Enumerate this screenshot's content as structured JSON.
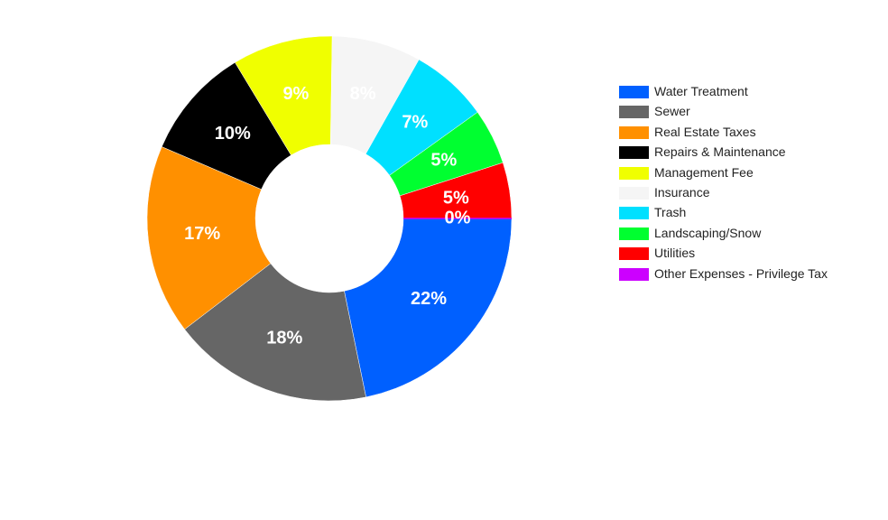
{
  "chart_data": {
    "type": "pie",
    "categories": [
      "Water Treatment",
      "Sewer",
      "Real Estate Taxes",
      "Repairs & Maintenance",
      "Management Fee",
      "Insurance",
      "Trash",
      "Landscaping/Snow",
      "Utilities",
      "Other Expenses - Privilege Tax"
    ],
    "values": [
      22,
      18,
      17,
      10,
      9,
      8,
      7,
      5,
      5,
      0
    ],
    "value_labels": [
      "22%",
      "18%",
      "17%",
      "10%",
      "9%",
      "8%",
      "7%",
      "5%",
      "5%",
      "0%"
    ],
    "colors": [
      "#0060ff",
      "#666666",
      "#ff9000",
      "#000000",
      "#f0ff00",
      "#f5f5f5",
      "#00e0ff",
      "#00ff30",
      "#ff0000",
      "#cc00ff"
    ],
    "legend": "right"
  }
}
